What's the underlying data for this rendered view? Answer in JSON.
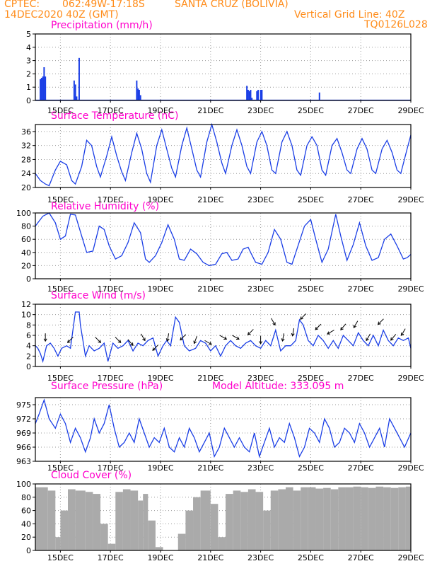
{
  "header": {
    "source": "CPTEC:",
    "coords": "062:49W-17:18S",
    "location": "SANTA CRUZ (BOLIVIA)",
    "date": "14DEC2020 40Z (GMT)",
    "grid_note": "Vertical Grid Line: 40Z",
    "code": "TQ0126L028"
  },
  "colors": {
    "header": "#ff8c1a",
    "title": "#ff00cc",
    "series": "#1a3ee6",
    "cloud": "#aaaaaa",
    "arrow": "#000000"
  },
  "x_axis": {
    "tick_labels": [
      "15DEC",
      "17DEC",
      "19DEC",
      "21DEC",
      "23DEC",
      "25DEC",
      "27DEC",
      "29DEC"
    ],
    "tick_days": [
      1,
      3,
      5,
      7,
      9,
      11,
      13,
      15
    ],
    "range_days": [
      0,
      15
    ]
  },
  "chart_data": [
    {
      "type": "bar",
      "title": "Precipitation (mm/h)",
      "ylim": [
        0,
        5
      ],
      "yticks": [
        0,
        1,
        2,
        3,
        4,
        5
      ],
      "x": [
        0.2,
        0.25,
        0.3,
        0.35,
        0.4,
        1.55,
        1.6,
        1.65,
        1.75,
        4.05,
        4.1,
        4.15,
        4.2,
        8.45,
        8.5,
        8.55,
        8.6,
        8.65,
        8.85,
        8.9,
        9.0,
        9.05,
        11.35
      ],
      "values": [
        1.6,
        1.7,
        1.8,
        2.5,
        1.8,
        1.5,
        1.2,
        0.3,
        3.2,
        1.5,
        0.9,
        0.8,
        0.4,
        1.1,
        0.8,
        0.7,
        0.8,
        0.2,
        0.7,
        0.8,
        0.8,
        0.8,
        0.6
      ]
    },
    {
      "type": "line",
      "title": "Surface Temperature (nC)",
      "ylim": [
        20,
        38
      ],
      "yticks": [
        20,
        24,
        28,
        32,
        36
      ],
      "x": [
        0,
        0.2,
        0.4,
        0.55,
        0.8,
        1.0,
        1.25,
        1.45,
        1.6,
        1.85,
        2.05,
        2.25,
        2.45,
        2.6,
        2.85,
        3.05,
        3.25,
        3.45,
        3.6,
        3.85,
        4.05,
        4.25,
        4.45,
        4.6,
        4.85,
        5.05,
        5.25,
        5.45,
        5.6,
        5.85,
        6.05,
        6.25,
        6.45,
        6.6,
        6.85,
        7.05,
        7.25,
        7.45,
        7.6,
        7.85,
        8.05,
        8.25,
        8.45,
        8.6,
        8.85,
        9.05,
        9.25,
        9.45,
        9.6,
        9.85,
        10.05,
        10.25,
        10.45,
        10.6,
        10.85,
        11.05,
        11.25,
        11.45,
        11.6,
        11.85,
        12.05,
        12.25,
        12.45,
        12.6,
        12.85,
        13.05,
        13.25,
        13.45,
        13.6,
        13.85,
        14.05,
        14.25,
        14.45,
        14.6,
        14.85,
        15.0
      ],
      "values": [
        24,
        22,
        21,
        20.5,
        25,
        27.5,
        26.5,
        22,
        21,
        26,
        33.5,
        32,
        26,
        23,
        29,
        34.5,
        29,
        24.5,
        22,
        30,
        35.5,
        31,
        24,
        21.5,
        32,
        36.5,
        31,
        25.5,
        23,
        32,
        37,
        31,
        25,
        23,
        33,
        38,
        33,
        27,
        24,
        32,
        36.5,
        32,
        26,
        24,
        33,
        36,
        32,
        25,
        24,
        33,
        36,
        32,
        25,
        23.5,
        32,
        34.5,
        32,
        25,
        23.5,
        32,
        34,
        30,
        25,
        24,
        31,
        34,
        31,
        25,
        24,
        31,
        33.5,
        30,
        25,
        24,
        31,
        35
      ]
    },
    {
      "type": "line",
      "title": "Relative Humidity (%)",
      "ylim": [
        0,
        100
      ],
      "yticks": [
        0,
        20,
        40,
        60,
        80,
        100
      ],
      "x": [
        0,
        0.1,
        0.3,
        0.55,
        0.8,
        1.0,
        1.2,
        1.4,
        1.6,
        1.85,
        2.05,
        2.3,
        2.55,
        2.75,
        2.95,
        3.2,
        3.45,
        3.7,
        3.95,
        4.2,
        4.4,
        4.55,
        4.8,
        5.05,
        5.3,
        5.55,
        5.75,
        5.95,
        6.2,
        6.45,
        6.7,
        6.95,
        7.2,
        7.45,
        7.65,
        7.85,
        8.1,
        8.3,
        8.5,
        8.6,
        8.8,
        9.05,
        9.3,
        9.55,
        9.8,
        10.05,
        10.25,
        10.45,
        10.75,
        11.0,
        11.2,
        11.45,
        11.7,
        12.0,
        12.2,
        12.45,
        12.7,
        12.95,
        13.2,
        13.45,
        13.7,
        13.95,
        14.2,
        14.45,
        14.7,
        14.85,
        15.0
      ],
      "values": [
        80,
        85,
        95,
        100,
        85,
        60,
        65,
        98,
        97,
        65,
        40,
        42,
        80,
        75,
        50,
        30,
        35,
        55,
        85,
        70,
        30,
        25,
        35,
        55,
        82,
        60,
        30,
        28,
        45,
        38,
        25,
        20,
        22,
        38,
        40,
        28,
        30,
        45,
        48,
        40,
        25,
        22,
        40,
        75,
        60,
        25,
        22,
        45,
        80,
        90,
        60,
        25,
        45,
        98,
        65,
        28,
        52,
        85,
        50,
        28,
        32,
        60,
        68,
        50,
        30,
        32,
        37
      ]
    },
    {
      "type": "line",
      "title": "Surface Wind (m/s)",
      "ylim": [
        0,
        12
      ],
      "yticks": [
        0,
        2,
        4,
        6,
        8,
        10,
        12
      ],
      "x": [
        0,
        0.1,
        0.2,
        0.3,
        0.45,
        0.6,
        0.75,
        0.9,
        1.05,
        1.25,
        1.4,
        1.6,
        1.75,
        1.8,
        1.9,
        2.0,
        2.15,
        2.35,
        2.55,
        2.75,
        2.9,
        3.1,
        3.3,
        3.5,
        3.7,
        3.9,
        4.1,
        4.3,
        4.5,
        4.7,
        4.9,
        5.1,
        5.25,
        5.4,
        5.6,
        5.75,
        5.95,
        6.15,
        6.4,
        6.6,
        6.8,
        7.0,
        7.2,
        7.4,
        7.6,
        7.8,
        8.0,
        8.2,
        8.4,
        8.6,
        8.8,
        9.0,
        9.2,
        9.4,
        9.6,
        9.8,
        10.0,
        10.2,
        10.4,
        10.55,
        10.7,
        10.9,
        11.1,
        11.3,
        11.5,
        11.7,
        11.9,
        12.1,
        12.3,
        12.5,
        12.7,
        12.9,
        13.1,
        13.3,
        13.5,
        13.7,
        13.9,
        14.1,
        14.3,
        14.5,
        14.7,
        14.9,
        15.0
      ],
      "values": [
        4,
        3.5,
        2.5,
        1,
        4,
        4.5,
        3.5,
        2,
        3.5,
        4,
        3.5,
        10.5,
        10.5,
        8,
        5,
        2,
        4,
        3,
        3.5,
        4.5,
        1,
        4.5,
        3.5,
        4,
        5,
        3,
        4.5,
        4,
        5,
        5.5,
        2,
        4,
        5,
        4,
        9.5,
        8.5,
        4,
        3,
        3.5,
        5,
        4.5,
        3,
        4,
        2,
        4,
        5,
        4,
        3.5,
        4.5,
        5,
        4,
        3.5,
        5,
        4,
        7,
        3,
        4,
        4,
        5,
        9,
        8,
        5,
        4,
        6,
        5,
        3.5,
        5,
        3.5,
        6,
        5,
        4,
        6.5,
        5,
        4,
        6,
        4,
        7,
        5,
        4,
        5.5,
        5,
        5.5,
        3.5
      ]
    },
    {
      "type": "line",
      "title": "Surface Pressure (hPa)",
      "annotation": "Model Altitude: 333.095 m",
      "ylim": [
        963,
        976.5
      ],
      "yticks": [
        963,
        966,
        969,
        972,
        975
      ],
      "x": [
        0,
        0.15,
        0.35,
        0.55,
        0.8,
        1.0,
        1.2,
        1.4,
        1.6,
        1.8,
        2.0,
        2.2,
        2.35,
        2.55,
        2.75,
        2.95,
        3.15,
        3.35,
        3.55,
        3.75,
        3.95,
        4.15,
        4.35,
        4.55,
        4.75,
        4.95,
        5.15,
        5.35,
        5.55,
        5.75,
        5.95,
        6.15,
        6.35,
        6.55,
        6.75,
        6.95,
        7.15,
        7.35,
        7.55,
        7.75,
        7.95,
        8.15,
        8.35,
        8.55,
        8.75,
        8.95,
        9.15,
        9.35,
        9.55,
        9.75,
        9.95,
        10.15,
        10.35,
        10.55,
        10.75,
        10.95,
        11.15,
        11.35,
        11.55,
        11.75,
        11.95,
        12.15,
        12.35,
        12.55,
        12.75,
        12.95,
        13.15,
        13.35,
        13.55,
        13.75,
        13.95,
        14.15,
        14.35,
        14.55,
        14.75,
        15.0
      ],
      "values": [
        971,
        973,
        976,
        972,
        970,
        973,
        971,
        967,
        970,
        968,
        965,
        968,
        972,
        969,
        971,
        975,
        970,
        966,
        967,
        969,
        967,
        972,
        969,
        966,
        968,
        967,
        970,
        966,
        965,
        968,
        966,
        970,
        968,
        965,
        967,
        969,
        964,
        966,
        970,
        968,
        966,
        968,
        966,
        965,
        969,
        964,
        967,
        970,
        966,
        968,
        967,
        971,
        968,
        964,
        966,
        970,
        969,
        967,
        972,
        970,
        966,
        967,
        970,
        969,
        967,
        971,
        969,
        966,
        968,
        970,
        966,
        972,
        970,
        968,
        966,
        969
      ]
    },
    {
      "type": "bar",
      "title": "Cloud Cover (%)",
      "ylim": [
        0,
        100
      ],
      "yticks": [
        0,
        20,
        40,
        60,
        80,
        100
      ],
      "x": [
        0,
        0.5,
        0.8,
        1.0,
        1.3,
        1.6,
        2.0,
        2.3,
        2.6,
        2.9,
        3.2,
        3.5,
        3.8,
        4.1,
        4.3,
        4.5,
        4.8,
        5.1,
        5.4,
        5.7,
        6.0,
        6.3,
        6.6,
        7.0,
        7.3,
        7.6,
        7.9,
        8.2,
        8.5,
        8.8,
        9.1,
        9.4,
        9.7,
        10.0,
        10.3,
        10.6,
        10.9,
        11.2,
        11.5,
        11.8,
        12.1,
        12.4,
        12.7,
        13.0,
        13.3,
        13.6,
        13.9,
        14.2,
        14.5,
        14.8
      ],
      "values": [
        95,
        90,
        20,
        60,
        92,
        90,
        88,
        85,
        40,
        10,
        88,
        92,
        90,
        75,
        85,
        45,
        5,
        0,
        0,
        25,
        60,
        80,
        90,
        70,
        20,
        85,
        90,
        88,
        92,
        88,
        60,
        90,
        92,
        95,
        90,
        95,
        95,
        93,
        94,
        92,
        95,
        95,
        96,
        95,
        94,
        96,
        95,
        94,
        95,
        96
      ]
    }
  ],
  "wind_arrows": {
    "x": [
      0.4,
      1.4,
      2.5,
      3.3,
      3.8,
      4.3,
      4.8,
      5.3,
      5.9,
      6.4,
      6.9,
      7.5,
      8.0,
      8.6,
      9.0,
      9.5,
      9.9,
      10.3,
      10.7,
      11.3,
      11.8,
      12.3,
      12.8,
      13.3,
      13.8,
      14.3,
      14.7
    ],
    "dir_deg": [
      90,
      135,
      45,
      45,
      50,
      60,
      135,
      100,
      135,
      110,
      30,
      30,
      30,
      135,
      90,
      60,
      100,
      100,
      135,
      135,
      150,
      130,
      120,
      120,
      135,
      130,
      120
    ]
  }
}
